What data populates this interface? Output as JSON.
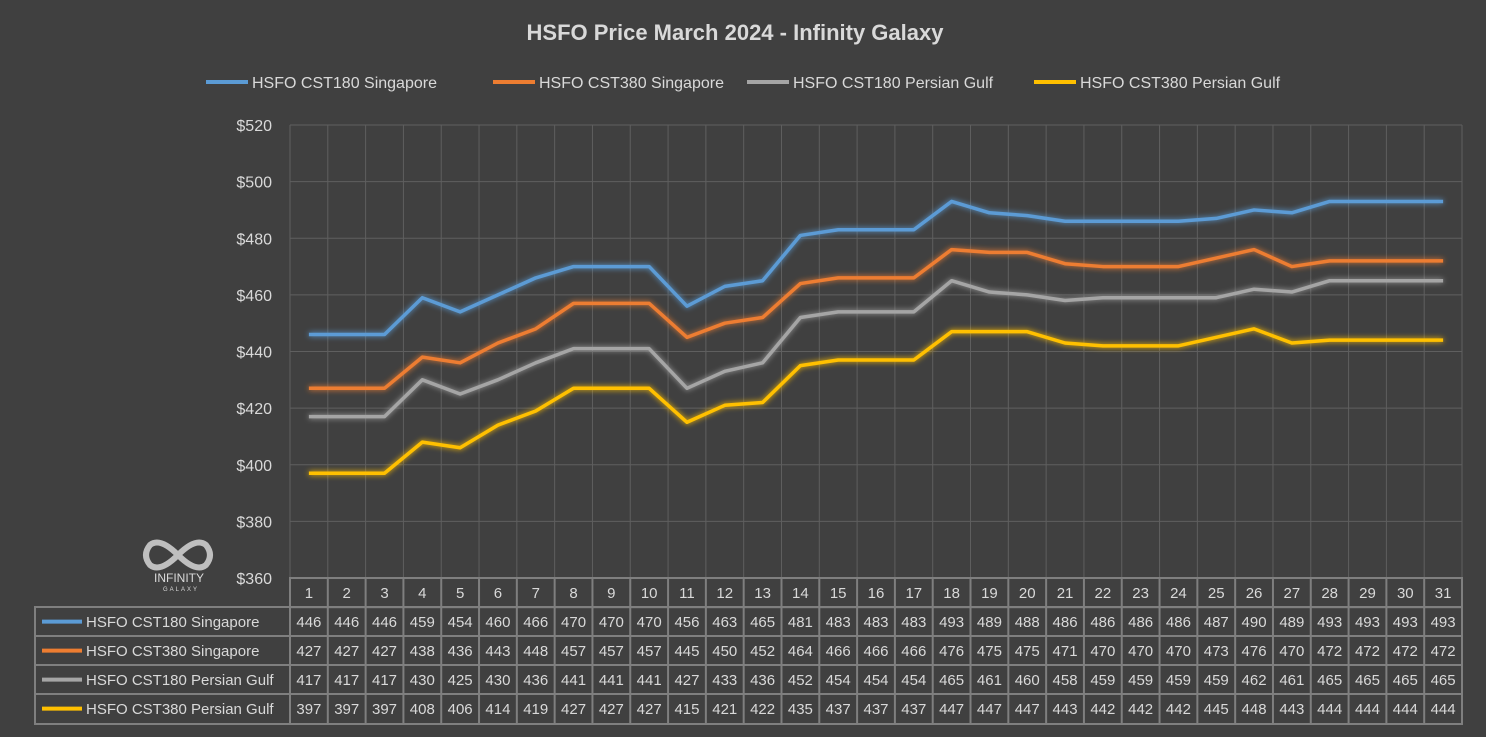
{
  "chart_data": {
    "type": "line",
    "title": "HSFO Price March 2024 - Infinity Galaxy",
    "xlabel": "",
    "ylabel": "",
    "ylim": [
      360,
      520
    ],
    "y_ticks": [
      "$360",
      "$380",
      "$400",
      "$420",
      "$440",
      "$460",
      "$480",
      "$500",
      "$520"
    ],
    "y_tick_values": [
      360,
      380,
      400,
      420,
      440,
      460,
      480,
      500,
      520
    ],
    "grid": true,
    "legend_position": "top",
    "data_table": true,
    "categories": [
      "1",
      "2",
      "3",
      "4",
      "5",
      "6",
      "7",
      "8",
      "9",
      "10",
      "11",
      "12",
      "13",
      "14",
      "15",
      "16",
      "17",
      "18",
      "19",
      "20",
      "21",
      "22",
      "23",
      "24",
      "25",
      "26",
      "27",
      "28",
      "29",
      "30",
      "31"
    ],
    "series": [
      {
        "name": "HSFO CST180 Singapore",
        "color": "#5b9bd5",
        "values": [
          446,
          446,
          446,
          459,
          454,
          460,
          466,
          470,
          470,
          470,
          456,
          463,
          465,
          481,
          483,
          483,
          483,
          493,
          489,
          488,
          486,
          486,
          486,
          486,
          487,
          490,
          489,
          493,
          493,
          493,
          493
        ]
      },
      {
        "name": "HSFO CST380 Singapore",
        "color": "#ed7d31",
        "values": [
          427,
          427,
          427,
          438,
          436,
          443,
          448,
          457,
          457,
          457,
          445,
          450,
          452,
          464,
          466,
          466,
          466,
          476,
          475,
          475,
          471,
          470,
          470,
          470,
          473,
          476,
          470,
          472,
          472,
          472,
          472
        ]
      },
      {
        "name": "HSFO CST180 Persian Gulf",
        "color": "#a5a5a5",
        "values": [
          417,
          417,
          417,
          430,
          425,
          430,
          436,
          441,
          441,
          441,
          427,
          433,
          436,
          452,
          454,
          454,
          454,
          465,
          461,
          460,
          458,
          459,
          459,
          459,
          459,
          462,
          461,
          465,
          465,
          465,
          465
        ]
      },
      {
        "name": "HSFO CST380 Persian Gulf",
        "color": "#ffc000",
        "values": [
          397,
          397,
          397,
          408,
          406,
          414,
          419,
          427,
          427,
          427,
          415,
          421,
          422,
          435,
          437,
          437,
          437,
          447,
          447,
          447,
          443,
          442,
          442,
          442,
          445,
          448,
          443,
          444,
          444,
          444,
          444
        ]
      }
    ]
  },
  "logo": {
    "line1": "INFINITY",
    "line2": "GALAXY"
  }
}
